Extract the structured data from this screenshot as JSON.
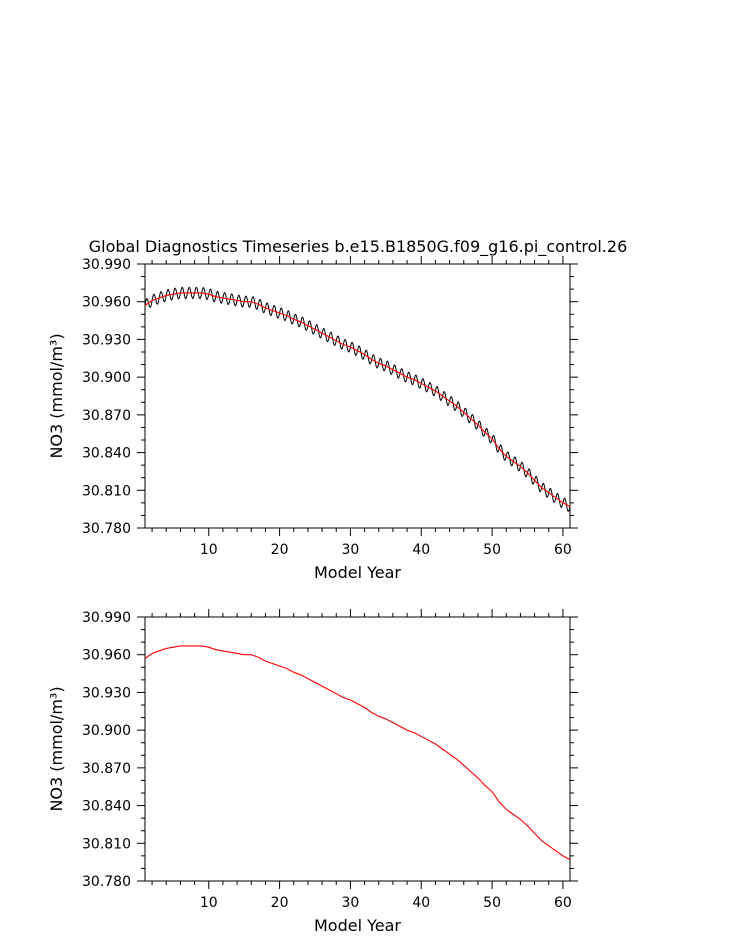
{
  "title": "Global Diagnostics Timeseries b.e15.B1850G.f09_g16.pi_control.26",
  "colors": {
    "monthly_line": "#000000",
    "annual_line": "#ff0000",
    "axes": "#000000",
    "background": "#ffffff"
  },
  "chart_data": [
    {
      "type": "line",
      "title": "Global Diagnostics Timeseries b.e15.B1850G.f09_g16.pi_control.26",
      "xlabel": "Model Year",
      "ylabel": "NO3 (mmol/m³)",
      "xlim": [
        1,
        61
      ],
      "ylim": [
        30.78,
        30.99
      ],
      "x_ticks": [
        10,
        20,
        30,
        40,
        50,
        60
      ],
      "x_tick_labels": [
        "10",
        "20",
        "30",
        "40",
        "50",
        "60"
      ],
      "y_ticks": [
        30.78,
        30.81,
        30.84,
        30.87,
        30.9,
        30.93,
        30.96,
        30.99
      ],
      "y_tick_labels": [
        "30.780",
        "30.810",
        "30.840",
        "30.870",
        "30.900",
        "30.930",
        "30.960",
        "30.990"
      ],
      "grid": false,
      "annual_cycle_amplitude": 0.0045,
      "series": [
        {
          "color": "#000000",
          "style": "monthly",
          "x": [
            1,
            2,
            3,
            4,
            5,
            6,
            7,
            8,
            9,
            10,
            11,
            12,
            13,
            14,
            15,
            16,
            17,
            18,
            19,
            20,
            21,
            22,
            23,
            24,
            25,
            26,
            27,
            28,
            29,
            30,
            31,
            32,
            33,
            34,
            35,
            36,
            37,
            38,
            39,
            40,
            41,
            42,
            43,
            44,
            45,
            46,
            47,
            48,
            49,
            50,
            51,
            52,
            53,
            54,
            55,
            56,
            57,
            58,
            59,
            60,
            61
          ],
          "values": [
            30.957,
            30.961,
            30.963,
            30.965,
            30.966,
            30.967,
            30.967,
            30.967,
            30.967,
            30.966,
            30.964,
            30.963,
            30.962,
            30.961,
            30.96,
            30.96,
            30.958,
            30.955,
            30.953,
            30.951,
            30.949,
            30.946,
            30.944,
            30.941,
            30.938,
            30.935,
            30.932,
            30.929,
            30.926,
            30.924,
            30.921,
            30.918,
            30.914,
            30.911,
            30.909,
            30.906,
            30.903,
            30.9,
            30.898,
            30.895,
            30.892,
            30.889,
            30.885,
            30.881,
            30.877,
            30.872,
            30.867,
            30.862,
            30.856,
            30.851,
            30.843,
            30.837,
            30.833,
            30.829,
            30.824,
            30.818,
            30.812,
            30.808,
            30.804,
            30.8,
            30.797
          ]
        },
        {
          "color": "#ff0000",
          "style": "annual",
          "x": [
            1,
            2,
            3,
            4,
            5,
            6,
            7,
            8,
            9,
            10,
            11,
            12,
            13,
            14,
            15,
            16,
            17,
            18,
            19,
            20,
            21,
            22,
            23,
            24,
            25,
            26,
            27,
            28,
            29,
            30,
            31,
            32,
            33,
            34,
            35,
            36,
            37,
            38,
            39,
            40,
            41,
            42,
            43,
            44,
            45,
            46,
            47,
            48,
            49,
            50,
            51,
            52,
            53,
            54,
            55,
            56,
            57,
            58,
            59,
            60,
            61
          ],
          "values": [
            30.957,
            30.961,
            30.963,
            30.965,
            30.966,
            30.967,
            30.967,
            30.967,
            30.967,
            30.966,
            30.964,
            30.963,
            30.962,
            30.961,
            30.96,
            30.96,
            30.958,
            30.955,
            30.953,
            30.951,
            30.949,
            30.946,
            30.944,
            30.941,
            30.938,
            30.935,
            30.932,
            30.929,
            30.926,
            30.924,
            30.921,
            30.918,
            30.914,
            30.911,
            30.909,
            30.906,
            30.903,
            30.9,
            30.898,
            30.895,
            30.892,
            30.889,
            30.885,
            30.881,
            30.877,
            30.872,
            30.867,
            30.862,
            30.856,
            30.851,
            30.843,
            30.837,
            30.833,
            30.829,
            30.824,
            30.818,
            30.812,
            30.808,
            30.804,
            30.8,
            30.797
          ]
        }
      ]
    },
    {
      "type": "line",
      "xlabel": "Model Year",
      "ylabel": "NO3 (mmol/m³)",
      "xlim": [
        1,
        61
      ],
      "ylim": [
        30.78,
        30.99
      ],
      "x_ticks": [
        10,
        20,
        30,
        40,
        50,
        60
      ],
      "x_tick_labels": [
        "10",
        "20",
        "30",
        "40",
        "50",
        "60"
      ],
      "y_ticks": [
        30.78,
        30.81,
        30.84,
        30.87,
        30.9,
        30.93,
        30.96,
        30.99
      ],
      "y_tick_labels": [
        "30.780",
        "30.810",
        "30.840",
        "30.870",
        "30.900",
        "30.930",
        "30.960",
        "30.990"
      ],
      "grid": false,
      "series": [
        {
          "color": "#ff0000",
          "style": "annual",
          "x": [
            1,
            2,
            3,
            4,
            5,
            6,
            7,
            8,
            9,
            10,
            11,
            12,
            13,
            14,
            15,
            16,
            17,
            18,
            19,
            20,
            21,
            22,
            23,
            24,
            25,
            26,
            27,
            28,
            29,
            30,
            31,
            32,
            33,
            34,
            35,
            36,
            37,
            38,
            39,
            40,
            41,
            42,
            43,
            44,
            45,
            46,
            47,
            48,
            49,
            50,
            51,
            52,
            53,
            54,
            55,
            56,
            57,
            58,
            59,
            60,
            61
          ],
          "values": [
            30.957,
            30.961,
            30.963,
            30.965,
            30.966,
            30.967,
            30.967,
            30.967,
            30.967,
            30.966,
            30.964,
            30.963,
            30.962,
            30.961,
            30.96,
            30.96,
            30.958,
            30.955,
            30.953,
            30.951,
            30.949,
            30.946,
            30.944,
            30.941,
            30.938,
            30.935,
            30.932,
            30.929,
            30.926,
            30.924,
            30.921,
            30.918,
            30.914,
            30.911,
            30.909,
            30.906,
            30.903,
            30.9,
            30.898,
            30.895,
            30.892,
            30.889,
            30.885,
            30.881,
            30.877,
            30.872,
            30.867,
            30.862,
            30.856,
            30.851,
            30.843,
            30.837,
            30.833,
            30.829,
            30.824,
            30.818,
            30.812,
            30.808,
            30.804,
            30.8,
            30.797
          ]
        }
      ]
    }
  ]
}
